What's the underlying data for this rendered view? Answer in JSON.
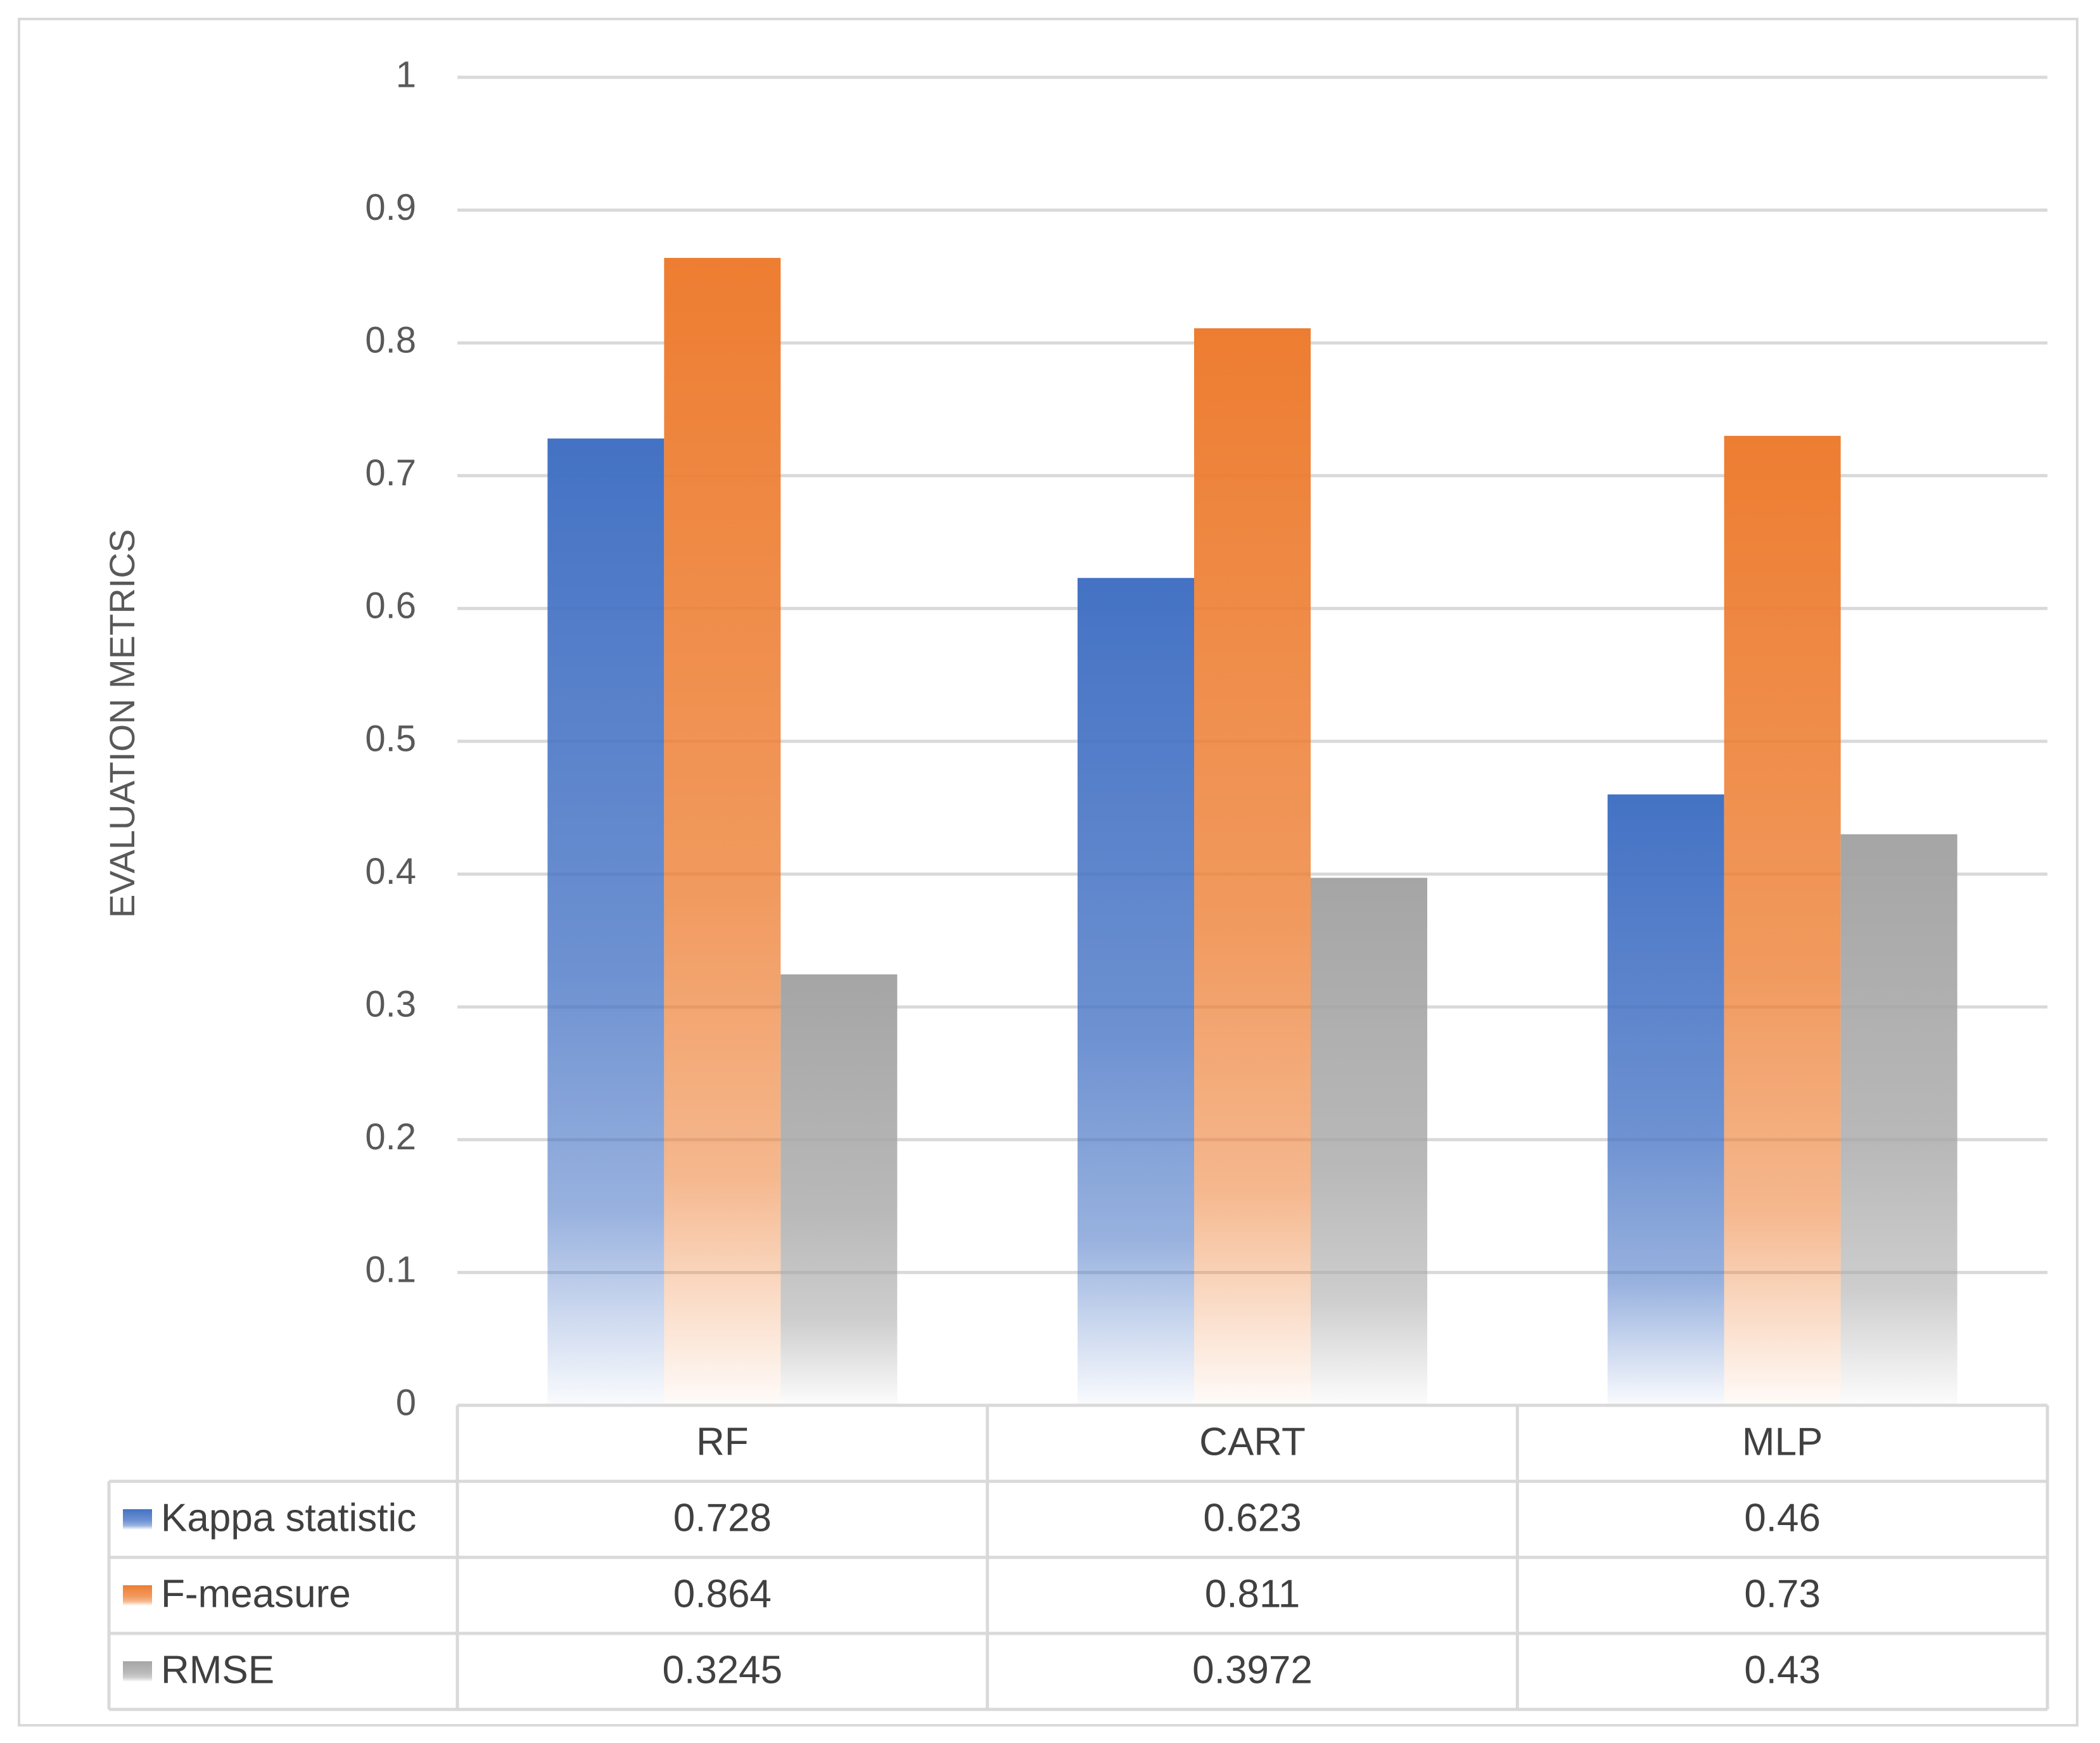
{
  "chart_data": {
    "type": "bar",
    "title": "",
    "xlabel": "",
    "ylabel": "EVALUATION METRICS",
    "ylim": [
      0,
      1
    ],
    "yticks": [
      "0",
      "0.1",
      "0.2",
      "0.3",
      "0.4",
      "0.5",
      "0.6",
      "0.7",
      "0.8",
      "0.9",
      "1"
    ],
    "grid": true,
    "legend_placement": "data-table",
    "categories": [
      "RF",
      "CART",
      "MLP"
    ],
    "series": [
      {
        "name": "Kappa statistic",
        "color": "#4472c4",
        "values": [
          0.728,
          0.623,
          0.46
        ],
        "labels": [
          "0.728",
          "0.623",
          "0.46"
        ]
      },
      {
        "name": "F-measure",
        "color": "#ed7d31",
        "values": [
          0.864,
          0.811,
          0.73
        ],
        "labels": [
          "0.864",
          "0.811",
          "0.73"
        ]
      },
      {
        "name": "RMSE",
        "color": "#a5a5a5",
        "values": [
          0.3245,
          0.3972,
          0.43
        ],
        "labels": [
          "0.3245",
          "0.3972",
          "0.43"
        ]
      }
    ]
  }
}
